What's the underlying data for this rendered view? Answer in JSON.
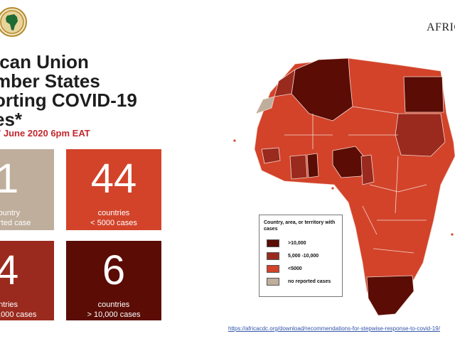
{
  "header": {
    "brand": "AFRIC",
    "title_lines": [
      "ican Union",
      "mber States",
      "orting COVID-19",
      "es*"
    ],
    "subtitle": "7 June 2020 6pm EAT"
  },
  "tiles": {
    "none": {
      "number": "1",
      "line1": "country",
      "line2": "orted case",
      "color": "#bfae9c"
    },
    "small": {
      "number": "44",
      "line1": "countries",
      "line2": "< 5000 cases",
      "color": "#d2432a"
    },
    "medium": {
      "number": "4",
      "line1": "untries",
      "line2": "0,000 cases",
      "color": "#9a2a1e"
    },
    "large": {
      "number": "6",
      "line1": "countries",
      "line2": "> 10,000 cases",
      "color": "#5a0c05"
    }
  },
  "legend": {
    "title": "Country, area, or territory with cases",
    "items": [
      {
        "label": ">10,000",
        "color": "#5a0c05"
      },
      {
        "label": "5,000 -10,000",
        "color": "#9a2a1e"
      },
      {
        "label": "<5000",
        "color": "#d2432a"
      },
      {
        "label": "no reported cases",
        "color": "#bfae9c"
      }
    ]
  },
  "source_link": "https://africacdc.org/download/recommendations-for-stepwise-response-to-covid-19/",
  "map": {
    "colors": {
      "high": "#5a0c05",
      "mid": "#9a2a1e",
      "low": "#d2432a",
      "none": "#bfae9c",
      "border": "#f4d9cf"
    }
  }
}
